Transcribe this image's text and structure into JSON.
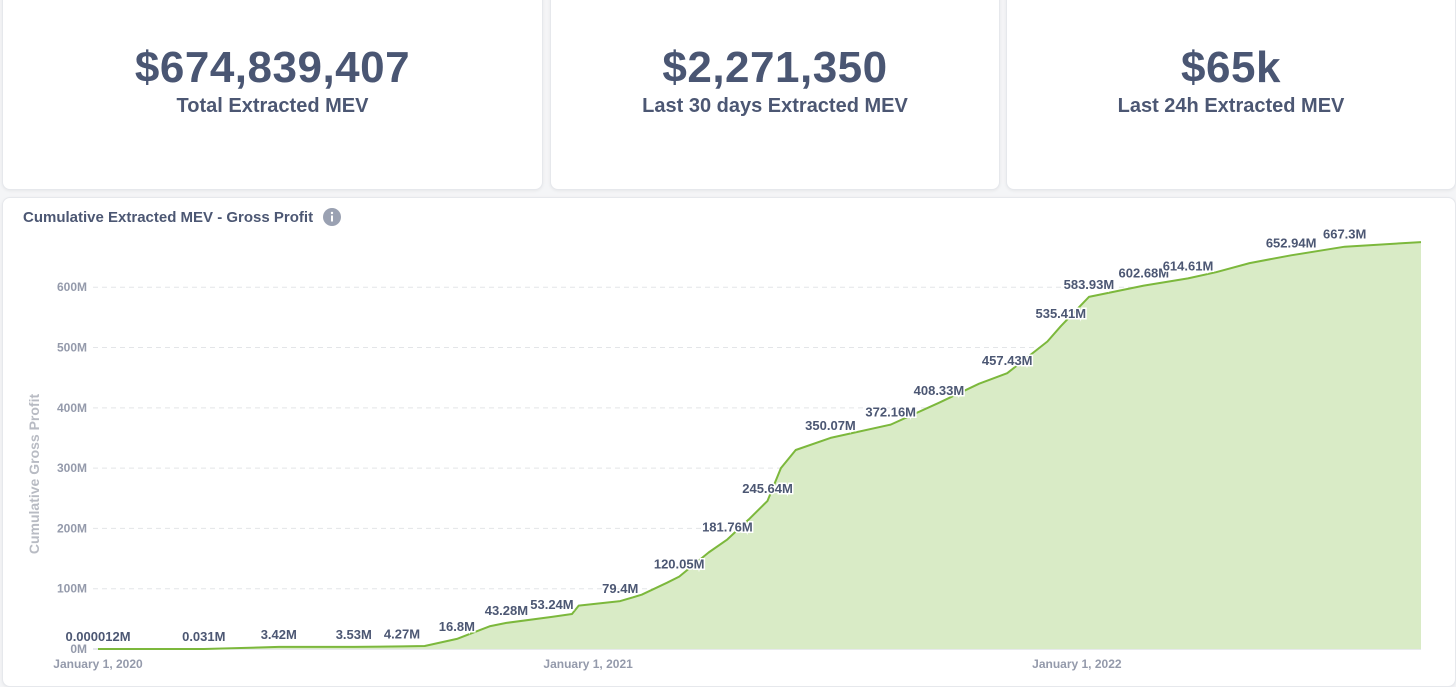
{
  "stats": [
    {
      "value": "$674,839,407",
      "label": "Total Extracted MEV"
    },
    {
      "value": "$2,271,350",
      "label": "Last 30 days Extracted MEV"
    },
    {
      "value": "$65k",
      "label": "Last 24h Extracted MEV"
    }
  ],
  "chart": {
    "title": "Cumulative Extracted MEV - Gross Profit",
    "info_icon": "info-icon"
  },
  "colors": {
    "line": "#7cb83c",
    "fill": "#d9ebc6",
    "grid": "#e3e5e8"
  },
  "chart_data": {
    "type": "area",
    "title": "Cumulative Extracted MEV - Gross Profit",
    "xlabel": "",
    "ylabel": "Cumulative Gross Profit",
    "ylim": [
      0,
      680
    ],
    "y_unit": "M",
    "y_ticks": [
      {
        "value": 0,
        "label": "0M"
      },
      {
        "value": 100,
        "label": "100M"
      },
      {
        "value": 200,
        "label": "200M"
      },
      {
        "value": 300,
        "label": "300M"
      },
      {
        "value": 400,
        "label": "400M"
      },
      {
        "value": 500,
        "label": "500M"
      },
      {
        "value": 600,
        "label": "600M"
      }
    ],
    "x_range": [
      "2020-01-01",
      "2022-09-15"
    ],
    "x_ticks": [
      {
        "date": "2020-01-01",
        "label": "January 1, 2020"
      },
      {
        "date": "2021-01-01",
        "label": "January 1, 2021"
      },
      {
        "date": "2022-01-01",
        "label": "January 1, 2022"
      }
    ],
    "grid": "horizontal",
    "legend": "none",
    "series": [
      {
        "points": [
          [
            "2020-01-01",
            1.2e-05
          ],
          [
            "2020-03-20",
            0.031
          ],
          [
            "2020-05-15",
            3.42
          ],
          [
            "2020-07-10",
            3.53
          ],
          [
            "2020-08-15",
            4.27
          ],
          [
            "2020-09-01",
            5
          ],
          [
            "2020-09-25",
            16.8
          ],
          [
            "2020-10-20",
            38
          ],
          [
            "2020-11-01",
            43.28
          ],
          [
            "2020-12-05",
            53.24
          ],
          [
            "2020-12-20",
            58
          ],
          [
            "2020-12-25",
            72
          ],
          [
            "2021-01-25",
            79.4
          ],
          [
            "2021-02-10",
            90
          ],
          [
            "2021-03-01",
            110
          ],
          [
            "2021-03-10",
            120.05
          ],
          [
            "2021-04-01",
            160
          ],
          [
            "2021-04-15",
            181.76
          ],
          [
            "2021-05-01",
            215
          ],
          [
            "2021-05-15",
            245.64
          ],
          [
            "2021-05-25",
            300
          ],
          [
            "2021-06-05",
            330
          ],
          [
            "2021-07-01",
            350.07
          ],
          [
            "2021-08-15",
            372.16
          ],
          [
            "2021-09-20",
            408.33
          ],
          [
            "2021-10-20",
            440
          ],
          [
            "2021-11-10",
            457.43
          ],
          [
            "2021-12-10",
            510
          ],
          [
            "2021-12-20",
            535.41
          ],
          [
            "2022-01-10",
            583.93
          ],
          [
            "2022-02-20",
            602.68
          ],
          [
            "2022-03-25",
            614.61
          ],
          [
            "2022-04-15",
            625
          ],
          [
            "2022-05-10",
            640
          ],
          [
            "2022-06-10",
            652.94
          ],
          [
            "2022-07-20",
            667.3
          ],
          [
            "2022-09-15",
            674.84
          ]
        ]
      }
    ],
    "annotations": [
      {
        "date": "2020-01-01",
        "value": 1.2e-05,
        "label": "0.000012M"
      },
      {
        "date": "2020-03-20",
        "value": 0.031,
        "label": "0.031M"
      },
      {
        "date": "2020-05-15",
        "value": 3.42,
        "label": "3.42M"
      },
      {
        "date": "2020-07-10",
        "value": 3.53,
        "label": "3.53M"
      },
      {
        "date": "2020-08-15",
        "value": 4.27,
        "label": "4.27M"
      },
      {
        "date": "2020-09-25",
        "value": 16.8,
        "label": "16.8M"
      },
      {
        "date": "2020-11-01",
        "value": 43.28,
        "label": "43.28M"
      },
      {
        "date": "2020-12-05",
        "value": 53.24,
        "label": "53.24M"
      },
      {
        "date": "2021-01-25",
        "value": 79.4,
        "label": "79.4M"
      },
      {
        "date": "2021-03-10",
        "value": 120.05,
        "label": "120.05M"
      },
      {
        "date": "2021-04-15",
        "value": 181.76,
        "label": "181.76M"
      },
      {
        "date": "2021-05-15",
        "value": 245.64,
        "label": "245.64M"
      },
      {
        "date": "2021-07-01",
        "value": 350.07,
        "label": "350.07M"
      },
      {
        "date": "2021-08-15",
        "value": 372.16,
        "label": "372.16M"
      },
      {
        "date": "2021-09-20",
        "value": 408.33,
        "label": "408.33M"
      },
      {
        "date": "2021-11-10",
        "value": 457.43,
        "label": "457.43M"
      },
      {
        "date": "2021-12-20",
        "value": 535.41,
        "label": "535.41M"
      },
      {
        "date": "2022-01-10",
        "value": 583.93,
        "label": "583.93M"
      },
      {
        "date": "2022-02-20",
        "value": 602.68,
        "label": "602.68M"
      },
      {
        "date": "2022-03-25",
        "value": 614.61,
        "label": "614.61M"
      },
      {
        "date": "2022-06-10",
        "value": 652.94,
        "label": "652.94M"
      },
      {
        "date": "2022-07-20",
        "value": 667.3,
        "label": "667.3M"
      }
    ]
  }
}
